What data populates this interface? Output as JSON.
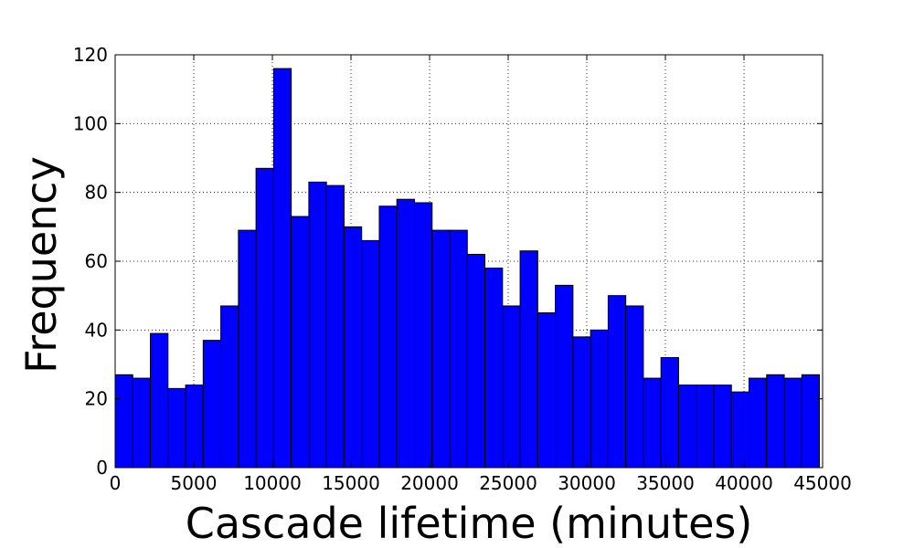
{
  "chart_data": {
    "type": "bar",
    "title": "",
    "xlabel": "Cascade lifetime (minutes)",
    "ylabel": "Frequency",
    "xlim": [
      0,
      45000
    ],
    "ylim": [
      0,
      120
    ],
    "grid": true,
    "bar_color": "#0000ff",
    "edge_color": "#000000",
    "x_ticks": [
      0,
      5000,
      10000,
      15000,
      20000,
      25000,
      30000,
      35000,
      40000,
      45000
    ],
    "x_tick_labels": [
      "0",
      "5000",
      "10000",
      "15000",
      "20000",
      "25000",
      "30000",
      "35000",
      "40000",
      "45000"
    ],
    "y_ticks": [
      0,
      20,
      40,
      60,
      80,
      100,
      120
    ],
    "y_tick_labels": [
      "0",
      "20",
      "40",
      "60",
      "80",
      "100",
      "120"
    ],
    "bin_start": 0,
    "bin_width": 1120,
    "values": [
      27,
      26,
      39,
      23,
      24,
      37,
      47,
      69,
      87,
      116,
      73,
      83,
      82,
      70,
      66,
      76,
      78,
      77,
      69,
      69,
      62,
      58,
      47,
      63,
      45,
      53,
      38,
      40,
      50,
      47,
      26,
      32,
      24,
      24,
      24,
      22,
      26,
      27,
      26,
      27
    ]
  }
}
